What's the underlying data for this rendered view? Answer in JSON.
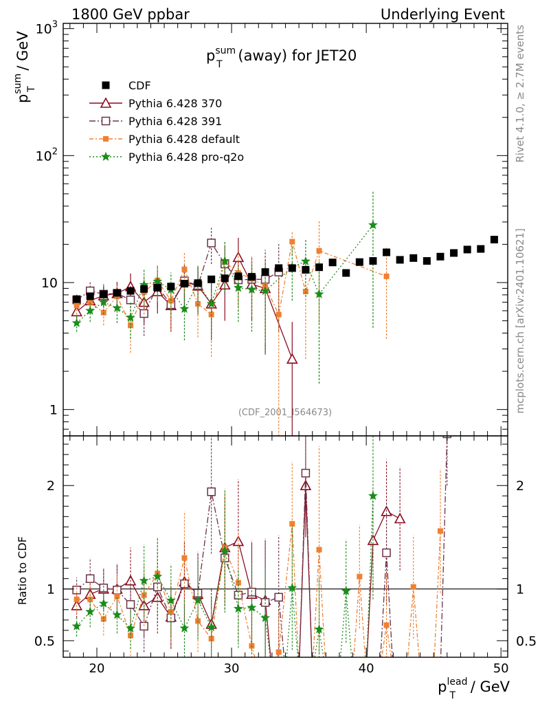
{
  "header": {
    "left": "1800 GeV ppbar",
    "right": "Underlying Event"
  },
  "side_labels": {
    "rivet": "Rivet 4.1.0, ≥ 2.7M events",
    "mcplots": "mcplots.cern.ch [arXiv:2401.10621]"
  },
  "watermark": "(CDF_2001_I564673)",
  "title": {
    "main": "p",
    "sup": "sum",
    "sub": "T",
    "rest": " (away) for JET20"
  },
  "ylabel_top": {
    "main": "p",
    "sup": "sum",
    "sub": "T",
    "rest": " / GeV"
  },
  "ylabel_bottom": "Ratio to CDF",
  "xlabel": {
    "main": "p",
    "sup": "lead",
    "sub": "T",
    "rest": " / GeV"
  },
  "colors": {
    "cdf": "#000000",
    "p370": "#8b0a1e",
    "p391": "#6b3048",
    "pdefault": "#f08030",
    "pq2o": "#1a8c1a"
  },
  "chart_data": {
    "type": "scatter",
    "x_range": [
      17.5,
      50.5
    ],
    "top": {
      "yscale": "log",
      "ylim": [
        0.62,
        1100
      ],
      "ytick_labels": [
        "1",
        "10",
        "10²",
        "10³"
      ],
      "ytick_values": [
        1,
        10,
        100,
        1000
      ]
    },
    "ratio": {
      "ylim": [
        0.34,
        2.48
      ],
      "ytick_labels": [
        "0.5",
        "1",
        "2"
      ],
      "ytick_values": [
        0.5,
        1,
        2
      ]
    },
    "xtick_labels": [
      "20",
      "30",
      "40",
      "50"
    ],
    "xtick_values": [
      20,
      30,
      40,
      50
    ],
    "legend": {
      "placement": "top-left",
      "entries": [
        "CDF",
        "Pythia 6.428 370",
        "Pythia 6.428 391",
        "Pythia 6.428 default",
        "Pythia 6.428 pro-q2o"
      ]
    },
    "series": [
      {
        "name": "CDF",
        "key": "cdf",
        "x": [
          18.5,
          19.5,
          20.5,
          21.5,
          22.5,
          23.5,
          24.5,
          25.5,
          26.5,
          27.5,
          28.5,
          29.5,
          30.5,
          31.5,
          32.5,
          33.5,
          34.5,
          35.5,
          36.5,
          37.5,
          38.5,
          39.5,
          40.5,
          41.5,
          42.5,
          43.5,
          44.5,
          45.5,
          46.5,
          47.5,
          48.5,
          49.5
        ],
        "y": [
          7.4,
          7.8,
          8.1,
          8.3,
          8.6,
          8.9,
          9.1,
          9.3,
          9.8,
          9.9,
          10.6,
          10.8,
          11.2,
          11.1,
          12.1,
          13.0,
          13.0,
          12.6,
          13.2,
          14.4,
          11.9,
          14.5,
          14.8,
          17.3,
          15.1,
          15.6,
          14.8,
          16.0,
          17.1,
          18.2,
          18.4,
          21.8
        ],
        "yerr": [
          0.5,
          0.5,
          0.5,
          0.5,
          0.5,
          0.5,
          0.5,
          0.5,
          0.5,
          0.5,
          0.6,
          0.6,
          0.6,
          0.6,
          0.7,
          0.7,
          0.7,
          0.7,
          0.7,
          0.8,
          0.7,
          0.8,
          0.8,
          0.9,
          0.8,
          0.8,
          0.8,
          0.9,
          0.9,
          1.0,
          1.0,
          1.2
        ]
      },
      {
        "name": "Pythia 6.428 370",
        "key": "p370",
        "x": [
          18.5,
          19.5,
          20.5,
          21.5,
          22.5,
          23.5,
          24.5,
          25.5,
          26.5,
          27.5,
          28.5,
          29.5,
          30.5,
          31.5,
          32.5,
          34.5
        ],
        "y": [
          5.9,
          7.2,
          7.9,
          8.2,
          9.3,
          7.0,
          8.5,
          6.6,
          10.2,
          9.4,
          6.8,
          9.6,
          15.8,
          9.7,
          9.0,
          2.5
        ],
        "yerr": [
          0.9,
          1.3,
          1.5,
          1.9,
          2.5,
          2.3,
          2.8,
          2.5,
          3.5,
          3.8,
          3.2,
          4.6,
          6.7,
          4.7,
          6.2,
          2.4
        ],
        "ratio_x": [
          18.5,
          19.5,
          20.5,
          21.5,
          22.5,
          23.5,
          24.5,
          25.5,
          26.5,
          27.5,
          28.5,
          29.5,
          30.5,
          31.5,
          32.5,
          35.5,
          40.5,
          41.5,
          42.5
        ],
        "ratio_y": [
          0.84,
          0.95,
          1.0,
          1.0,
          1.08,
          0.84,
          0.92,
          0.73,
          1.07,
          0.95,
          0.66,
          1.4,
          1.46,
          0.95,
          0.89,
          2.0,
          1.47,
          1.75,
          1.68
        ],
        "ratio_err": [
          0.12,
          0.18,
          0.2,
          0.25,
          0.32,
          0.3,
          0.35,
          0.3,
          0.4,
          0.4,
          0.35,
          0.5,
          0.6,
          0.5,
          0.6,
          0.5,
          0.5,
          0.5,
          0.5
        ]
      },
      {
        "name": "Pythia 6.428 391",
        "key": "p391",
        "x": [
          18.5,
          19.5,
          20.5,
          21.5,
          22.5,
          23.5,
          24.5,
          25.5,
          26.5,
          27.5,
          28.5,
          29.5,
          30.5,
          31.5,
          32.5,
          33.5
        ],
        "y": [
          7.3,
          8.6,
          8.1,
          8.2,
          7.3,
          5.7,
          9.3,
          6.7,
          10.3,
          9.5,
          20.5,
          14.0,
          10.5,
          10.6,
          10.6,
          12.1
        ],
        "yerr": [
          0.9,
          1.5,
          1.6,
          1.9,
          2.1,
          1.9,
          3.0,
          2.6,
          3.6,
          3.9,
          6.5,
          5.8,
          4.6,
          5.0,
          7.5,
          8.0
        ],
        "ratio_x": [
          18.5,
          19.5,
          20.5,
          21.5,
          22.5,
          23.5,
          24.5,
          25.5,
          26.5,
          27.5,
          28.5,
          29.5,
          30.5,
          31.5,
          32.5,
          33.5,
          35.5,
          41.5,
          46.0
        ],
        "ratio_y": [
          0.99,
          1.1,
          1.01,
          0.99,
          0.85,
          0.64,
          1.02,
          0.72,
          1.05,
          0.96,
          1.94,
          1.3,
          0.94,
          0.97,
          0.87,
          0.92,
          2.12,
          1.35,
          2.5
        ],
        "ratio_err": [
          0.12,
          0.2,
          0.2,
          0.25,
          0.28,
          0.25,
          0.35,
          0.3,
          0.4,
          0.4,
          0.6,
          0.5,
          0.45,
          0.5,
          0.6,
          0.6,
          0.6,
          0.5,
          0.5
        ]
      },
      {
        "name": "Pythia 6.428 default",
        "key": "pdefault",
        "x": [
          18.5,
          19.5,
          20.5,
          21.5,
          22.5,
          23.5,
          24.5,
          25.5,
          26.5,
          27.5,
          28.5,
          29.5,
          30.5,
          31.5,
          32.5,
          33.5,
          34.5,
          35.5,
          36.5,
          41.5
        ],
        "y": [
          6.6,
          7.0,
          5.8,
          7.8,
          4.6,
          8.4,
          10.4,
          7.2,
          12.7,
          6.8,
          5.6,
          14.5,
          11.9,
          10.7,
          9.4,
          5.6,
          21.0,
          8.5,
          17.8,
          11.2
        ],
        "yerr": [
          1.0,
          1.3,
          1.2,
          1.9,
          1.8,
          2.8,
          3.3,
          3.0,
          4.4,
          3.1,
          3.0,
          6.1,
          5.4,
          5.3,
          6.0,
          5.5,
          4.5,
          6.0,
          13.0,
          7.6
        ],
        "ratio_x": [
          18.5,
          19.5,
          20.5,
          21.5,
          22.5,
          23.5,
          24.5,
          25.5,
          26.5,
          27.5,
          28.5,
          29.5,
          30.5,
          31.5,
          33.5,
          34.5,
          36.5,
          39.5,
          41.5,
          43.5,
          45.5
        ],
        "ratio_y": [
          0.9,
          0.9,
          0.71,
          0.93,
          0.55,
          0.94,
          1.15,
          0.78,
          1.3,
          0.69,
          0.52,
          1.4,
          1.06,
          0.45,
          0.39,
          1.63,
          1.38,
          1.12,
          0.65,
          1.02,
          1.56
        ],
        "ratio_err": [
          0.14,
          0.17,
          0.16,
          0.22,
          0.2,
          0.3,
          0.35,
          0.3,
          0.45,
          0.3,
          0.28,
          0.55,
          0.5,
          0.4,
          0.4,
          0.6,
          1.0,
          0.5,
          0.5,
          0.5,
          0.6
        ]
      },
      {
        "name": "Pythia 6.428 pro-q2o",
        "key": "pq2o",
        "x": [
          18.5,
          19.5,
          20.5,
          21.5,
          22.5,
          23.5,
          24.5,
          25.5,
          26.5,
          27.5,
          28.5,
          29.5,
          30.5,
          31.5,
          32.5,
          34.5,
          35.5,
          36.5,
          40.5
        ],
        "y": [
          4.8,
          6.0,
          7.0,
          6.3,
          5.3,
          9.6,
          10.2,
          8.8,
          6.2,
          9.8,
          6.8,
          14.8,
          9.1,
          8.8,
          8.6,
          13.2,
          14.7,
          8.1,
          28.4
        ],
        "yerr": [
          0.7,
          1.1,
          1.4,
          1.5,
          1.7,
          3.1,
          3.3,
          3.2,
          2.7,
          4.0,
          3.3,
          6.4,
          4.2,
          4.7,
          5.9,
          6.0,
          7.0,
          6.5,
          24.0
        ],
        "ratio_x": [
          18.5,
          19.5,
          20.5,
          21.5,
          22.5,
          23.5,
          24.5,
          25.5,
          26.5,
          27.5,
          28.5,
          29.5,
          30.5,
          31.5,
          32.5,
          34.5,
          36.5,
          38.5,
          40.5
        ],
        "ratio_y": [
          0.64,
          0.78,
          0.86,
          0.75,
          0.62,
          1.08,
          1.12,
          0.89,
          0.62,
          0.89,
          0.63,
          1.37,
          0.81,
          0.82,
          0.72,
          1.01,
          0.61,
          0.98,
          1.9
        ],
        "ratio_err": [
          0.1,
          0.15,
          0.18,
          0.18,
          0.2,
          0.35,
          0.38,
          0.35,
          0.28,
          0.38,
          0.3,
          0.6,
          0.38,
          0.45,
          0.5,
          0.6,
          0.5,
          0.5,
          1.0
        ]
      }
    ]
  }
}
